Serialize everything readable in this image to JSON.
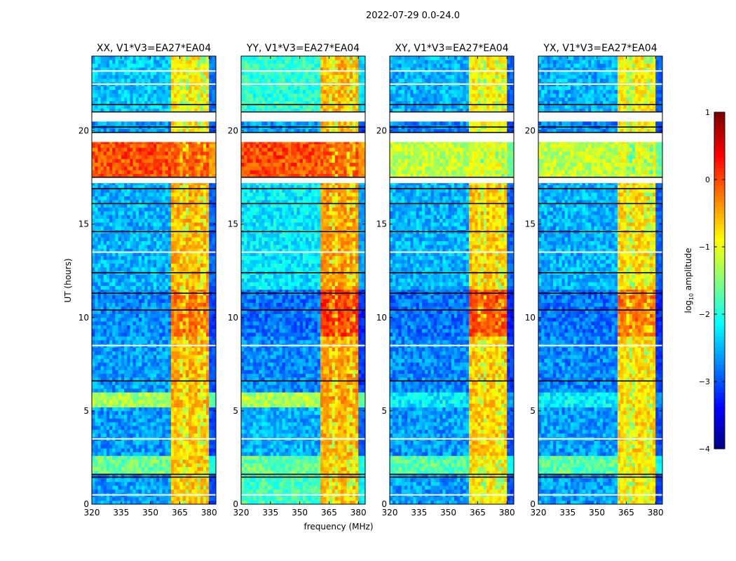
{
  "chart_data": {
    "type": "heatmap",
    "title": "2022-07-29 0.0-24.0",
    "xlabel": "frequency (MHz)",
    "ylabel": "UT (hours)",
    "xlim": [
      320,
      383.5
    ],
    "ylim": [
      0,
      24
    ],
    "xticks": [
      "320",
      "335",
      "350",
      "365",
      "380"
    ],
    "yticks": [
      "0",
      "5",
      "10",
      "15",
      "20"
    ],
    "colorbar": {
      "label": "log10 amplitude",
      "label_main": "log",
      "label_sub": "10",
      "label_rest": " amplitude",
      "range": [
        -4,
        1
      ],
      "ticks": [
        "1",
        "0",
        "−1",
        "−2",
        "−3",
        "−4"
      ],
      "colormap": "jet"
    },
    "rfi_band_mhz": [
      360,
      380
    ],
    "flagged_hours": [
      [
        17.2,
        17.5
      ],
      [
        19.4,
        19.9
      ],
      [
        20.5,
        21.0
      ]
    ],
    "black_lines_hours": [
      1.45,
      1.6,
      6.6,
      10.4,
      11.3,
      12.4,
      14.6,
      16.1,
      16.9,
      20.2,
      21.4
    ],
    "white_lines_hours": [
      0.5,
      3.5,
      8.5,
      13.5,
      22.5,
      23.2
    ],
    "panels": [
      {
        "title": "XX, V1*V3=EA27*EA04",
        "segments": [
          {
            "hours": [
              0,
              1.6
            ],
            "bg": -2.6,
            "rfi": -0.6
          },
          {
            "hours": [
              1.6,
              2.6
            ],
            "bg": -1.6,
            "rfi": -0.6
          },
          {
            "hours": [
              2.6,
              5.2
            ],
            "bg": -2.6,
            "rfi": -0.6
          },
          {
            "hours": [
              5.2,
              6.0
            ],
            "bg": -1.3,
            "rfi": -0.5
          },
          {
            "hours": [
              6.0,
              9.0
            ],
            "bg": -2.6,
            "rfi": -0.5
          },
          {
            "hours": [
              9.0,
              11.5
            ],
            "bg": -2.7,
            "rfi": -0.2
          },
          {
            "hours": [
              11.5,
              17.2
            ],
            "bg": -2.5,
            "rfi": -0.5
          },
          {
            "hours": [
              17.5,
              19.4
            ],
            "bg": 0.0,
            "rfi": -0.1
          },
          {
            "hours": [
              19.9,
              20.5
            ],
            "bg": -2.6,
            "rfi": -0.7
          },
          {
            "hours": [
              21.0,
              24
            ],
            "bg": -2.4,
            "rfi": -0.8
          }
        ]
      },
      {
        "title": "YY, V1*V3=EA27*EA04",
        "segments": [
          {
            "hours": [
              0,
              1.6
            ],
            "bg": -1.8,
            "rfi": -0.6
          },
          {
            "hours": [
              1.6,
              2.6
            ],
            "bg": -1.6,
            "rfi": -0.6
          },
          {
            "hours": [
              2.6,
              5.2
            ],
            "bg": -2.5,
            "rfi": -0.5
          },
          {
            "hours": [
              5.2,
              6.0
            ],
            "bg": -1.3,
            "rfi": -0.4
          },
          {
            "hours": [
              6.0,
              9.0
            ],
            "bg": -2.7,
            "rfi": -0.4
          },
          {
            "hours": [
              9.0,
              11.5
            ],
            "bg": -2.8,
            "rfi": 0.1
          },
          {
            "hours": [
              11.5,
              17.2
            ],
            "bg": -2.2,
            "rfi": -0.4
          },
          {
            "hours": [
              17.5,
              19.4
            ],
            "bg": 0.0,
            "rfi": -0.1
          },
          {
            "hours": [
              19.9,
              20.5
            ],
            "bg": -2.6,
            "rfi": -0.5
          },
          {
            "hours": [
              21.0,
              24
            ],
            "bg": -1.9,
            "rfi": -0.5
          }
        ]
      },
      {
        "title": "XY, V1*V3=EA27*EA04",
        "segments": [
          {
            "hours": [
              0,
              1.6
            ],
            "bg": -2.6,
            "rfi": -0.8
          },
          {
            "hours": [
              1.6,
              2.6
            ],
            "bg": -1.7,
            "rfi": -0.8
          },
          {
            "hours": [
              2.6,
              5.2
            ],
            "bg": -2.6,
            "rfi": -0.6
          },
          {
            "hours": [
              5.2,
              6.0
            ],
            "bg": -2.2,
            "rfi": -0.6
          },
          {
            "hours": [
              6.0,
              9.0
            ],
            "bg": -2.7,
            "rfi": -0.6
          },
          {
            "hours": [
              9.0,
              11.5
            ],
            "bg": -2.8,
            "rfi": 0.0
          },
          {
            "hours": [
              11.5,
              17.2
            ],
            "bg": -2.5,
            "rfi": -0.6
          },
          {
            "hours": [
              17.5,
              19.4
            ],
            "bg": -1.2,
            "rfi": -1.0
          },
          {
            "hours": [
              19.9,
              20.5
            ],
            "bg": -2.7,
            "rfi": -0.8
          },
          {
            "hours": [
              21.0,
              24
            ],
            "bg": -2.5,
            "rfi": -0.8
          }
        ]
      },
      {
        "title": "YX, V1*V3=EA27*EA04",
        "segments": [
          {
            "hours": [
              0,
              1.6
            ],
            "bg": -2.6,
            "rfi": -0.8
          },
          {
            "hours": [
              1.6,
              2.6
            ],
            "bg": -1.7,
            "rfi": -0.8
          },
          {
            "hours": [
              2.6,
              5.2
            ],
            "bg": -2.6,
            "rfi": -0.7
          },
          {
            "hours": [
              5.2,
              6.0
            ],
            "bg": -2.2,
            "rfi": -0.7
          },
          {
            "hours": [
              6.0,
              9.0
            ],
            "bg": -2.7,
            "rfi": -0.7
          },
          {
            "hours": [
              9.0,
              11.5
            ],
            "bg": -2.8,
            "rfi": -0.2
          },
          {
            "hours": [
              11.5,
              17.2
            ],
            "bg": -2.5,
            "rfi": -0.7
          },
          {
            "hours": [
              17.5,
              19.4
            ],
            "bg": -1.2,
            "rfi": -1.0
          },
          {
            "hours": [
              19.9,
              20.5
            ],
            "bg": -2.7,
            "rfi": -0.8
          },
          {
            "hours": [
              21.0,
              24
            ],
            "bg": -2.5,
            "rfi": -0.8
          }
        ]
      }
    ]
  }
}
